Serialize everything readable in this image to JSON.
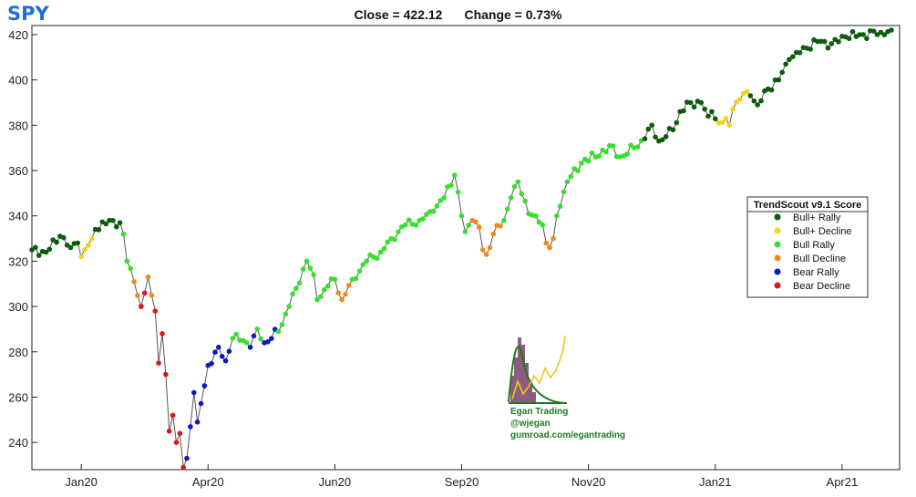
{
  "header": {
    "ticker": "SPY",
    "close_label": "Close = 422.12",
    "change_label": "Change = 0.73%"
  },
  "legend": {
    "title": "TrendScout v9.1 Score",
    "entries": [
      {
        "label": "Bull+ Rally",
        "color": "#0a5c0a"
      },
      {
        "label": "Bull+ Decline",
        "color": "#f4d21f"
      },
      {
        "label": "Bull Rally",
        "color": "#38e02e"
      },
      {
        "label": "Bull Decline",
        "color": "#ee8a1e"
      },
      {
        "label": "Bear Rally",
        "color": "#0c18c0"
      },
      {
        "label": "Bear Decline",
        "color": "#e01414"
      }
    ]
  },
  "watermark": {
    "line1": "Egan Trading",
    "line2": "@wjegan",
    "line3": "gumroad.com/egantrading",
    "icon": "distribution-histogram-logo"
  },
  "chart_data": {
    "type": "scatter",
    "title": "",
    "xlabel": "",
    "ylabel": "",
    "ylim": [
      228,
      424
    ],
    "yticks": [
      240,
      260,
      280,
      300,
      320,
      340,
      360,
      380,
      400,
      420
    ],
    "xticks": [
      {
        "label": "Jan20",
        "index": 14
      },
      {
        "label": "Apr20",
        "index": 50
      },
      {
        "label": "Jun20",
        "index": 86
      },
      {
        "label": "Sep20",
        "index": 122
      },
      {
        "label": "Nov20",
        "index": 158
      },
      {
        "label": "Jan21",
        "index": 194
      },
      {
        "label": "Apr21",
        "index": 230
      }
    ],
    "grid": false,
    "legend_position": "right",
    "line_color": "#555555",
    "n_points": 245,
    "anchors": [
      [
        0,
        325,
        1
      ],
      [
        4,
        324,
        1
      ],
      [
        8,
        331,
        1
      ],
      [
        11,
        326,
        1
      ],
      [
        13,
        328,
        1
      ],
      [
        14,
        322,
        2
      ],
      [
        17,
        330,
        2
      ],
      [
        18,
        334,
        1
      ],
      [
        22,
        338,
        1
      ],
      [
        25,
        337,
        1
      ],
      [
        26,
        332,
        3
      ],
      [
        27,
        320,
        3
      ],
      [
        29,
        311,
        4
      ],
      [
        31,
        300,
        6
      ],
      [
        33,
        313,
        4
      ],
      [
        34,
        305,
        4
      ],
      [
        35,
        298,
        6
      ],
      [
        36,
        275,
        6
      ],
      [
        37,
        288,
        6
      ],
      [
        38,
        270,
        6
      ],
      [
        39,
        245,
        6
      ],
      [
        40,
        252,
        6
      ],
      [
        41,
        240,
        6
      ],
      [
        42,
        244,
        6
      ],
      [
        43,
        229,
        6
      ],
      [
        44,
        233,
        5
      ],
      [
        46,
        262,
        5
      ],
      [
        47,
        249,
        5
      ],
      [
        49,
        265,
        5
      ],
      [
        50,
        274,
        5
      ],
      [
        53,
        282,
        5
      ],
      [
        55,
        276,
        5
      ],
      [
        57,
        286,
        3
      ],
      [
        60,
        285,
        3
      ],
      [
        62,
        282,
        5
      ],
      [
        64,
        290,
        3
      ],
      [
        66,
        284,
        5
      ],
      [
        70,
        289,
        3
      ],
      [
        73,
        300,
        3
      ],
      [
        75,
        308,
        3
      ],
      [
        78,
        320,
        3
      ],
      [
        80,
        314,
        3
      ],
      [
        81,
        303,
        3
      ],
      [
        84,
        309,
        3
      ],
      [
        86,
        312,
        3
      ],
      [
        87,
        306,
        4
      ],
      [
        88,
        303,
        4
      ],
      [
        91,
        312,
        3
      ],
      [
        95,
        320,
        3
      ],
      [
        99,
        324,
        3
      ],
      [
        102,
        330,
        3
      ],
      [
        106,
        336,
        3
      ],
      [
        110,
        338,
        3
      ],
      [
        114,
        342,
        3
      ],
      [
        117,
        348,
        3
      ],
      [
        120,
        358,
        3
      ],
      [
        122,
        340,
        3
      ],
      [
        123,
        333,
        3
      ],
      [
        125,
        338,
        4
      ],
      [
        127,
        335,
        4
      ],
      [
        128,
        325,
        4
      ],
      [
        129,
        323,
        4
      ],
      [
        131,
        332,
        4
      ],
      [
        134,
        338,
        3
      ],
      [
        136,
        348,
        3
      ],
      [
        138,
        355,
        3
      ],
      [
        141,
        341,
        3
      ],
      [
        143,
        340,
        3
      ],
      [
        145,
        336,
        3
      ],
      [
        146,
        328,
        4
      ],
      [
        147,
        326,
        4
      ],
      [
        148,
        330,
        4
      ],
      [
        149,
        340,
        3
      ],
      [
        152,
        355,
        3
      ],
      [
        157,
        365,
        3
      ],
      [
        160,
        366,
        3
      ],
      [
        164,
        371,
        3
      ],
      [
        167,
        366,
        3
      ],
      [
        171,
        370,
        3
      ],
      [
        174,
        374,
        1
      ],
      [
        176,
        380,
        1
      ],
      [
        178,
        373,
        1
      ],
      [
        180,
        375,
        1
      ],
      [
        182,
        378,
        1
      ],
      [
        184,
        386,
        1
      ],
      [
        187,
        390,
        1
      ],
      [
        190,
        390,
        1
      ],
      [
        192,
        384,
        1
      ],
      [
        193,
        386,
        1
      ],
      [
        195,
        381,
        2
      ],
      [
        197,
        383,
        2
      ],
      [
        198,
        380,
        2
      ],
      [
        199,
        387,
        2
      ],
      [
        202,
        394,
        2
      ],
      [
        204,
        393,
        1
      ],
      [
        206,
        389,
        1
      ],
      [
        209,
        396,
        1
      ],
      [
        212,
        400,
        1
      ],
      [
        215,
        409,
        1
      ],
      [
        218,
        412,
        1
      ],
      [
        220,
        414,
        1
      ],
      [
        223,
        417,
        1
      ],
      [
        227,
        416,
        1
      ],
      [
        231,
        419,
        1
      ],
      [
        236,
        420,
        1
      ],
      [
        241,
        421,
        1
      ],
      [
        244,
        422,
        1
      ]
    ]
  }
}
